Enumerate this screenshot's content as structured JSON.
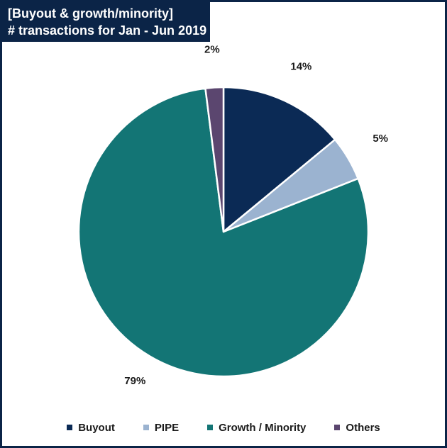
{
  "header": {
    "title_line1": "[Buyout & growth/minority]",
    "title_line2": "# transactions for Jan - Jun 2019"
  },
  "chart_data": {
    "type": "pie",
    "categories": [
      "Buyout",
      "PIPE",
      "Growth / Minority",
      "Others"
    ],
    "values": [
      14,
      5,
      79,
      2
    ],
    "value_labels": [
      "14%",
      "5%",
      "79%",
      "2%"
    ],
    "colors": [
      "#0b2a55",
      "#9bb3d0",
      "#137575",
      "#5b466f"
    ],
    "start": "12 o'clock, clockwise",
    "legend_position": "bottom"
  },
  "legend": {
    "items": [
      {
        "label": "Buyout",
        "color": "#0b2a55"
      },
      {
        "label": "PIPE",
        "color": "#9bb3d0"
      },
      {
        "label": "Growth / Minority",
        "color": "#137575"
      },
      {
        "label": "Others",
        "color": "#5b466f"
      }
    ]
  }
}
